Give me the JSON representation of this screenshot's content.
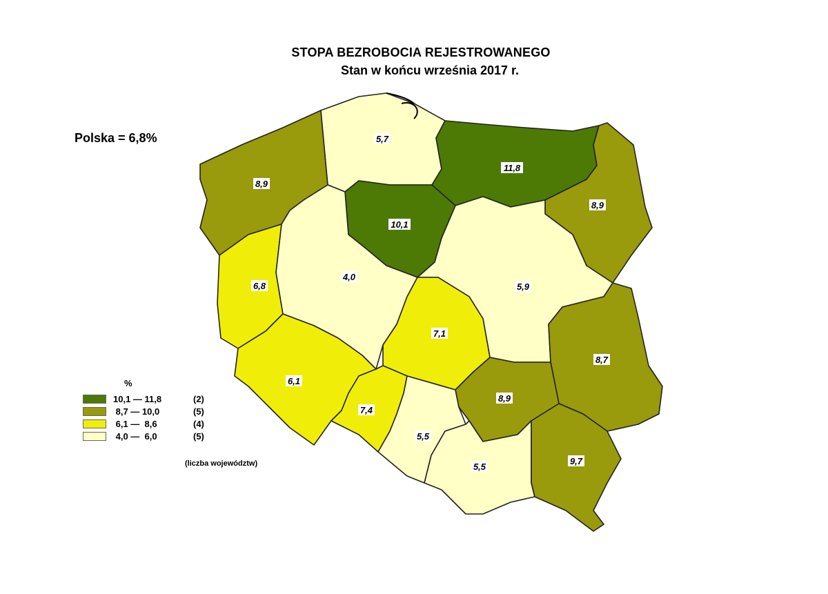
{
  "title": "STOPA BEZROBOCIA REJESTROWANEGO",
  "subtitle": "Stan w końcu września 2017 r.",
  "national": "Polska = 6,8%",
  "legend": {
    "unit": "%",
    "note": "(liczba województw)",
    "classes": [
      {
        "range": "10,1 — 11,8",
        "count": "(2)",
        "color": "#4d7a05"
      },
      {
        "range": " 8,7 — 10,0",
        "count": "(5)",
        "color": "#999a0c"
      },
      {
        "range": " 6,1 —  8,6",
        "count": "(4)",
        "color": "#f0ee08"
      },
      {
        "range": " 4,0 —  6,0",
        "count": "(5)",
        "color": "#ffffc6"
      }
    ]
  },
  "regions": [
    {
      "id": "zachodniopomorskie",
      "value": "8,9",
      "color": "#999a0c"
    },
    {
      "id": "pomorskie",
      "value": "5,7",
      "color": "#ffffc6"
    },
    {
      "id": "warminsko-mazurskie",
      "value": "11,8",
      "color": "#4d7a05"
    },
    {
      "id": "podlaskie",
      "value": "8,9",
      "color": "#999a0c"
    },
    {
      "id": "kujawsko-pomorskie",
      "value": "10,1",
      "color": "#4d7a05"
    },
    {
      "id": "lubuskie",
      "value": "6,8",
      "color": "#f0ee08"
    },
    {
      "id": "wielkopolskie",
      "value": "4,0",
      "color": "#ffffc6"
    },
    {
      "id": "mazowieckie",
      "value": "5,9",
      "color": "#ffffc6"
    },
    {
      "id": "lodzkie",
      "value": "7,1",
      "color": "#f0ee08"
    },
    {
      "id": "lubelskie",
      "value": "8,7",
      "color": "#999a0c"
    },
    {
      "id": "dolnoslaskie",
      "value": "6,1",
      "color": "#f0ee08"
    },
    {
      "id": "opolskie",
      "value": "7,4",
      "color": "#f0ee08"
    },
    {
      "id": "slaskie",
      "value": "5,5",
      "color": "#ffffc6"
    },
    {
      "id": "swietokrzyskie",
      "value": "8,9",
      "color": "#999a0c"
    },
    {
      "id": "malopolskie",
      "value": "5,5",
      "color": "#ffffc6"
    },
    {
      "id": "podkarpackie",
      "value": "9,7",
      "color": "#999a0c"
    }
  ]
}
